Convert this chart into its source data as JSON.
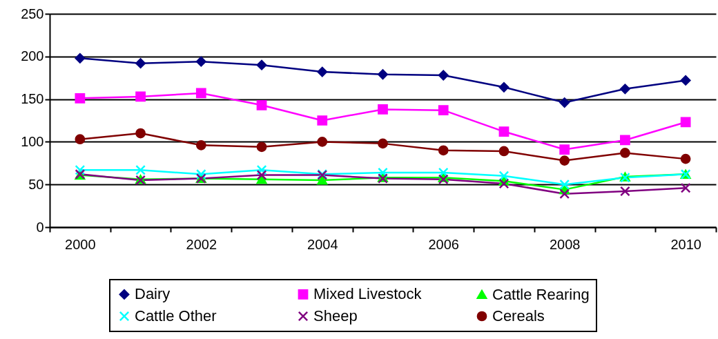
{
  "chart_data": {
    "type": "line",
    "categories": [
      "2000",
      null,
      "2002",
      null,
      "2004",
      null,
      "2006",
      null,
      "2008",
      null,
      "2010"
    ],
    "series": [
      {
        "name": "Dairy",
        "color": "#000080",
        "marker": "diamond",
        "values": [
          198,
          192,
          194,
          190,
          182,
          179,
          178,
          164,
          146,
          162,
          172
        ]
      },
      {
        "name": "Mixed Livestock",
        "color": "#ff00ff",
        "marker": "square",
        "values": [
          151,
          153,
          157,
          143,
          125,
          138,
          137,
          112,
          91,
          102,
          123
        ]
      },
      {
        "name": "Cattle Rearing",
        "color": "#00ff00",
        "marker": "triangle",
        "values": [
          61,
          56,
          57,
          56,
          55,
          58,
          58,
          54,
          44,
          59,
          62
        ]
      },
      {
        "name": "Cattle Other",
        "color": "#00ffff",
        "marker": "cross",
        "values": [
          67,
          67,
          62,
          67,
          62,
          64,
          64,
          60,
          50,
          58,
          62
        ]
      },
      {
        "name": "Sheep",
        "color": "#800080",
        "marker": "cross",
        "values": [
          62,
          55,
          57,
          61,
          61,
          57,
          56,
          51,
          39,
          42,
          46
        ]
      },
      {
        "name": "Cereals",
        "color": "#800000",
        "marker": "circle",
        "values": [
          103,
          110,
          96,
          94,
          100,
          98,
          90,
          89,
          78,
          87,
          80
        ]
      }
    ],
    "ylim": [
      0,
      250
    ],
    "yticks": [
      0,
      50,
      100,
      150,
      200,
      250
    ],
    "grid": "y",
    "legend": "bottom"
  }
}
